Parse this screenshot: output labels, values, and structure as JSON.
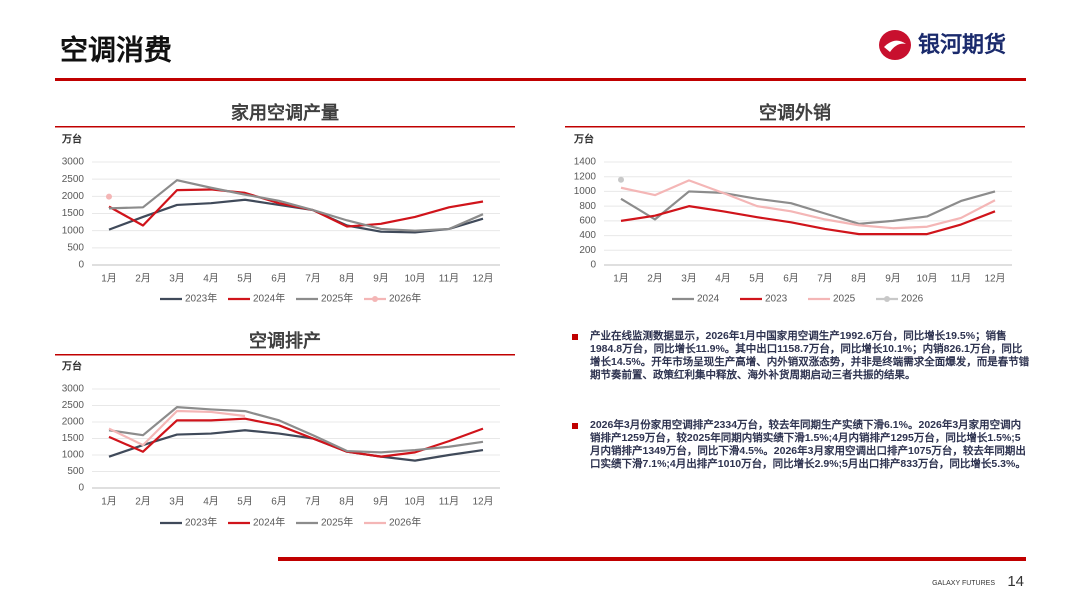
{
  "page": {
    "title": "空调消费",
    "logo": "银河期货",
    "footer": "GALAXY FUTURES",
    "page_number": "14",
    "bullets": [
      "产业在线监测数据显示，2026年1月中国家用空调生产1992.6万台，同比增长19.5%；销售1984.8万台，同比增长11.9%。其中出口1158.7万台，同比增长10.1%；内销826.1万台，同比增长14.5%。开年市场呈现生产高增、内外销双涨态势，并非是终端需求全面爆发，而是春节错期节奏前置、政策红利集中释放、海外补货周期启动三者共振的结果。",
      "2026年3月份家用空调排产2334万台，较去年同期生产实绩下滑6.1%。2026年3月家用空调内销排产1259万台，较2025年同期内销实绩下滑1.5%;4月内销排产1295万台，同比增长1.5%;5月内销排产1349万台，同比下滑4.5%。2026年3月家用空调出口排产1075万台，较去年同期出口实绩下滑7.1%;4月出排产1010万台，同比增长2.9%;5月出口排产833万台，同比增长5.3%。"
    ]
  },
  "chart_data": [
    {
      "type": "line",
      "title": "家用空调产量",
      "y_label": "万台",
      "categories": [
        "1月",
        "2月",
        "3月",
        "4月",
        "5月",
        "6月",
        "7月",
        "8月",
        "9月",
        "10月",
        "11月",
        "12月"
      ],
      "ylim": [
        0,
        3000
      ],
      "yticks": [
        0,
        500,
        1000,
        1500,
        2000,
        2500,
        3000
      ],
      "series": [
        {
          "name": "2023年",
          "color": "#404a5a",
          "values": [
            1030,
            1400,
            1750,
            1800,
            1900,
            1750,
            1600,
            1150,
            970,
            950,
            1050,
            1350
          ]
        },
        {
          "name": "2024年",
          "color": "#d0141b",
          "values": [
            1700,
            1150,
            2180,
            2200,
            2100,
            1800,
            1600,
            1120,
            1200,
            1400,
            1680,
            1850
          ]
        },
        {
          "name": "2025年",
          "color": "#8c8c8c",
          "values": [
            1650,
            1680,
            2470,
            2250,
            2050,
            1870,
            1600,
            1300,
            1050,
            1000,
            1050,
            1480
          ]
        },
        {
          "name": "2026年",
          "color": "#f4b6b6",
          "values": [
            1992.6,
            null,
            null,
            null,
            null,
            null,
            null,
            null,
            null,
            null,
            null,
            null
          ]
        }
      ]
    },
    {
      "type": "line",
      "title": "空调外销",
      "y_label": "万台",
      "categories": [
        "1月",
        "2月",
        "3月",
        "4月",
        "5月",
        "6月",
        "7月",
        "8月",
        "9月",
        "10月",
        "11月",
        "12月"
      ],
      "ylim": [
        0,
        1400
      ],
      "yticks": [
        0,
        200,
        400,
        600,
        800,
        1000,
        1200,
        1400
      ],
      "series": [
        {
          "name": "2024",
          "color": "#8c8c8c",
          "values": [
            900,
            620,
            1000,
            980,
            900,
            840,
            700,
            560,
            600,
            660,
            870,
            1000
          ]
        },
        {
          "name": "2023",
          "color": "#d0141b",
          "values": [
            600,
            670,
            800,
            730,
            650,
            580,
            490,
            420,
            420,
            420,
            550,
            730
          ]
        },
        {
          "name": "2025",
          "color": "#f4b6b6",
          "values": [
            1050,
            950,
            1150,
            980,
            800,
            730,
            620,
            540,
            500,
            520,
            640,
            880
          ]
        },
        {
          "name": "2026",
          "color": "#c8c8c8",
          "values": [
            1158.7,
            null,
            null,
            null,
            null,
            null,
            null,
            null,
            null,
            null,
            null,
            null
          ]
        }
      ]
    },
    {
      "type": "line",
      "title": "空调排产",
      "y_label": "万台",
      "categories": [
        "1月",
        "2月",
        "3月",
        "4月",
        "5月",
        "6月",
        "7月",
        "8月",
        "9月",
        "10月",
        "11月",
        "12月"
      ],
      "ylim": [
        0,
        3000
      ],
      "yticks": [
        0,
        500,
        1000,
        1500,
        2000,
        2500,
        3000
      ],
      "series": [
        {
          "name": "2023年",
          "color": "#404a5a",
          "values": [
            950,
            1300,
            1620,
            1650,
            1750,
            1650,
            1500,
            1100,
            950,
            830,
            1000,
            1150
          ]
        },
        {
          "name": "2024年",
          "color": "#d0141b",
          "values": [
            1550,
            1100,
            2050,
            2050,
            2100,
            1900,
            1500,
            1100,
            950,
            1080,
            1420,
            1800
          ]
        },
        {
          "name": "2025年",
          "color": "#8c8c8c",
          "values": [
            1750,
            1600,
            2450,
            2380,
            2330,
            2050,
            1600,
            1120,
            1080,
            1150,
            1250,
            1400
          ]
        },
        {
          "name": "2026年",
          "color": "#f4b6b6",
          "values": [
            1800,
            1300,
            2334,
            2305,
            2182,
            null,
            null,
            null,
            null,
            null,
            null,
            null
          ]
        }
      ]
    }
  ]
}
